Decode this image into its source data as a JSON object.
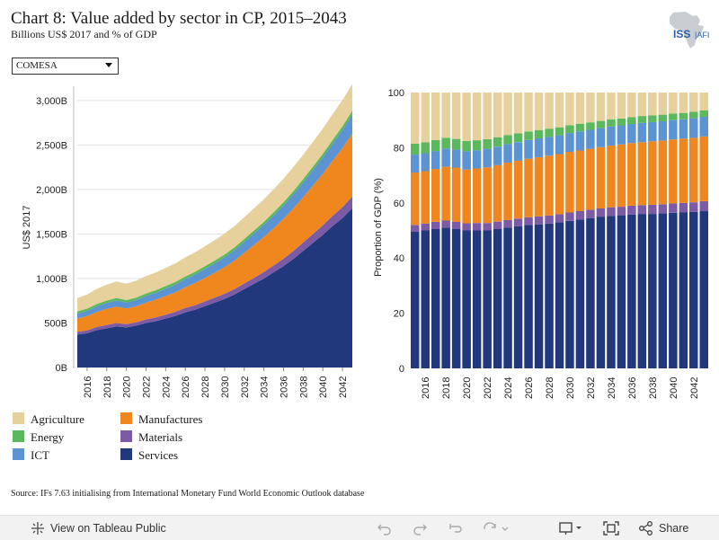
{
  "header": {
    "title": "Chart 8: Value added by sector in CP, 2015–2043",
    "subtitle": "Billions US$ 2017 and % of GDP",
    "logo_text": "ISS | AFI"
  },
  "filter": {
    "selected": "COMESA"
  },
  "legend": [
    {
      "label": "Agriculture",
      "color": "#e6d09c"
    },
    {
      "label": "Energy",
      "color": "#5cb85c"
    },
    {
      "label": "ICT",
      "color": "#5b93d3"
    },
    {
      "label": "Manufactures",
      "color": "#f0861e"
    },
    {
      "label": "Materials",
      "color": "#7b5aa6"
    },
    {
      "label": "Services",
      "color": "#22387d"
    }
  ],
  "source": "Source: IFs 7.63 initialising from International Monetary Fund World Economic Outlook database",
  "toolbar": {
    "view_label": "View on Tableau Public",
    "share_label": "Share"
  },
  "chart_data": [
    {
      "type": "area",
      "stacked": true,
      "ylabel": "US$ 2017",
      "ylim": [
        0,
        3150
      ],
      "y_ticks": [
        0,
        500,
        1000,
        1500,
        2000,
        2500,
        3000
      ],
      "y_tick_labels": [
        "0B",
        "500B",
        "1,000B",
        "1,500B",
        "2,000B",
        "2,500B",
        "3,000B"
      ],
      "x_tick_labels": [
        "2016",
        "2018",
        "2020",
        "2022",
        "2024",
        "2026",
        "2028",
        "2030",
        "2032",
        "2034",
        "2036",
        "2038",
        "2040",
        "2042"
      ],
      "x": [
        2015,
        2016,
        2017,
        2018,
        2019,
        2020,
        2021,
        2022,
        2023,
        2024,
        2025,
        2026,
        2027,
        2028,
        2029,
        2030,
        2031,
        2032,
        2033,
        2034,
        2035,
        2036,
        2037,
        2038,
        2039,
        2040,
        2041,
        2042,
        2043
      ],
      "series": [
        {
          "name": "Services",
          "values": [
            370,
            385,
            420,
            440,
            460,
            450,
            470,
            500,
            520,
            550,
            580,
            620,
            650,
            690,
            730,
            770,
            820,
            880,
            940,
            1000,
            1070,
            1140,
            1220,
            1310,
            1400,
            1490,
            1590,
            1680,
            1790
          ]
        },
        {
          "name": "Materials",
          "values": [
            30,
            32,
            35,
            38,
            40,
            38,
            38,
            40,
            42,
            44,
            46,
            48,
            50,
            52,
            55,
            58,
            61,
            64,
            68,
            72,
            77,
            82,
            88,
            94,
            100,
            107,
            114,
            122,
            130
          ]
        },
        {
          "name": "Manufactures",
          "values": [
            150,
            160,
            170,
            180,
            185,
            175,
            180,
            190,
            200,
            210,
            220,
            235,
            250,
            265,
            280,
            300,
            320,
            345,
            370,
            395,
            420,
            450,
            480,
            510,
            545,
            580,
            620,
            665,
            710
          ]
        },
        {
          "name": "ICT",
          "values": [
            55,
            58,
            62,
            66,
            68,
            67,
            70,
            74,
            78,
            82,
            86,
            90,
            95,
            100,
            105,
            110,
            116,
            122,
            128,
            135,
            142,
            150,
            158,
            166,
            175,
            184,
            193,
            203,
            213
          ]
        },
        {
          "name": "Energy",
          "values": [
            25,
            26,
            27,
            28,
            28,
            27,
            27,
            28,
            28,
            29,
            29,
            30,
            30,
            31,
            31,
            32,
            32,
            33,
            34,
            34,
            35,
            35,
            36,
            37,
            38,
            39,
            40,
            41,
            42
          ]
        },
        {
          "name": "Agriculture",
          "values": [
            150,
            160,
            170,
            180,
            185,
            185,
            190,
            195,
            200,
            205,
            210,
            215,
            220,
            225,
            230,
            235,
            240,
            245,
            250,
            255,
            260,
            265,
            270,
            275,
            280,
            285,
            290,
            295,
            300
          ]
        }
      ]
    },
    {
      "type": "bar",
      "stacked": true,
      "ylabel": "Proportion of GDP (%)",
      "ylim": [
        0,
        100
      ],
      "y_ticks": [
        0,
        20,
        40,
        60,
        80,
        100
      ],
      "x_tick_labels": [
        "2016",
        "2018",
        "2020",
        "2022",
        "2024",
        "2026",
        "2028",
        "2030",
        "2032",
        "2034",
        "2036",
        "2038",
        "2040",
        "2042"
      ],
      "x": [
        2015,
        2016,
        2017,
        2018,
        2019,
        2020,
        2021,
        2022,
        2023,
        2024,
        2025,
        2026,
        2027,
        2028,
        2029,
        2030,
        2031,
        2032,
        2033,
        2034,
        2035,
        2036,
        2037,
        2038,
        2039,
        2040,
        2041,
        2042,
        2043
      ],
      "series": [
        {
          "name": "Services",
          "values": [
            49.5,
            50,
            50.5,
            51,
            50.5,
            50,
            50,
            50,
            50.5,
            51,
            51.5,
            52,
            52.2,
            52.5,
            53,
            53.5,
            54,
            54.5,
            55,
            55.3,
            55.5,
            55.8,
            56,
            56,
            56.2,
            56.4,
            56.5,
            56.7,
            57
          ]
        },
        {
          "name": "Materials",
          "values": [
            2.5,
            2.5,
            2.6,
            2.6,
            2.6,
            2.6,
            2.7,
            2.7,
            2.7,
            2.8,
            2.8,
            2.8,
            2.9,
            2.9,
            2.9,
            3,
            3,
            3,
            3,
            3.1,
            3.1,
            3.2,
            3.2,
            3.3,
            3.3,
            3.4,
            3.5,
            3.5,
            3.6
          ]
        },
        {
          "name": "Manufactures",
          "values": [
            19,
            19,
            19.2,
            19.5,
            19.7,
            19.5,
            19.8,
            20.2,
            20.5,
            20.8,
            21,
            21.2,
            21.5,
            21.7,
            21.8,
            22,
            22,
            22.1,
            22.2,
            22.4,
            22.6,
            22.7,
            22.8,
            23,
            23.1,
            23.2,
            23.3,
            23.4,
            23.5
          ]
        },
        {
          "name": "ICT",
          "values": [
            6.5,
            6.5,
            6.5,
            6.6,
            6.6,
            6.6,
            6.6,
            6.7,
            6.7,
            6.7,
            6.7,
            6.8,
            6.8,
            6.8,
            6.8,
            6.8,
            6.9,
            6.9,
            6.9,
            6.9,
            6.9,
            6.9,
            7,
            7,
            7,
            7,
            7,
            7.1,
            7.1
          ]
        },
        {
          "name": "Energy",
          "values": [
            4,
            4,
            4,
            3.9,
            3.8,
            3.7,
            3.6,
            3.5,
            3.4,
            3.3,
            3.2,
            3.1,
            3,
            3,
            2.9,
            2.8,
            2.8,
            2.7,
            2.6,
            2.6,
            2.5,
            2.5,
            2.5,
            2.4,
            2.4,
            2.4,
            2.3,
            2.3,
            2.3
          ]
        },
        {
          "name": "Agriculture",
          "values": [
            18.5,
            18,
            17.2,
            16.4,
            16.8,
            17.6,
            17.3,
            16.9,
            16.2,
            15.4,
            14.8,
            14.1,
            13.6,
            13.1,
            12.6,
            11.9,
            11.3,
            10.8,
            10.3,
            9.7,
            9.4,
            8.9,
            8.5,
            8.3,
            8,
            7.6,
            7.4,
            7,
            6.5
          ]
        }
      ]
    }
  ]
}
